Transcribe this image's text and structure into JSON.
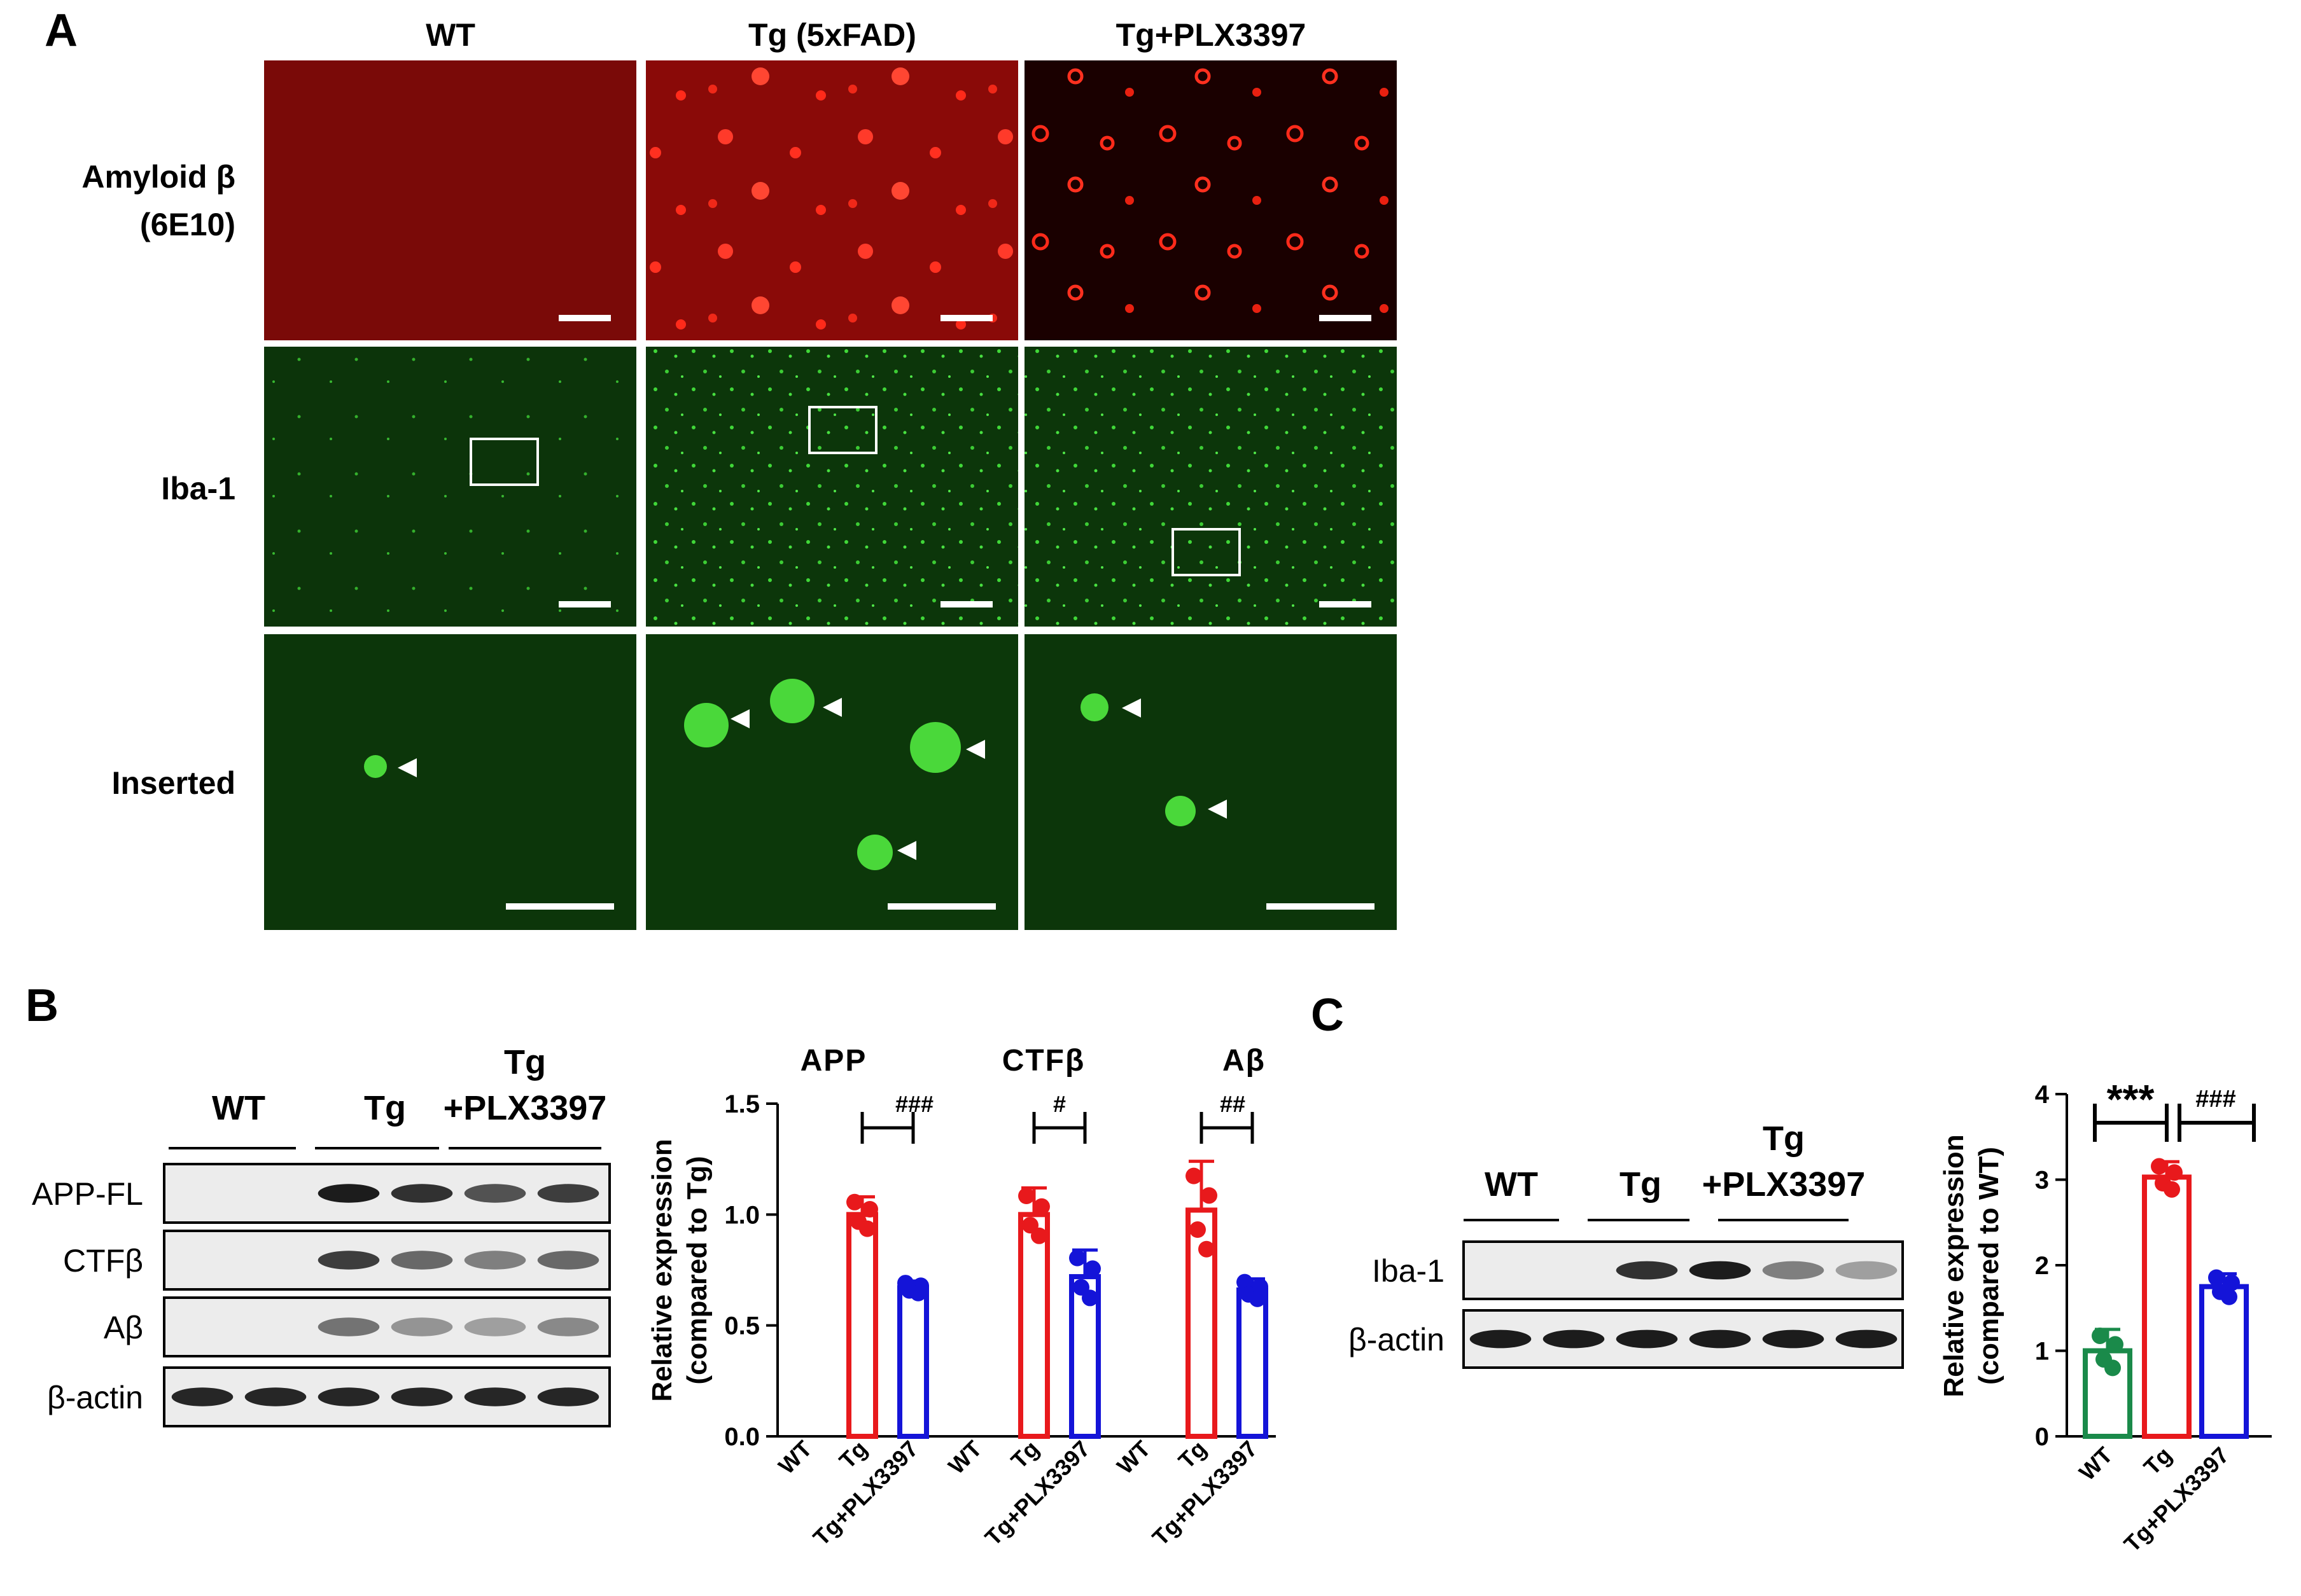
{
  "panels": {
    "a": "A",
    "b": "B",
    "c": "C"
  },
  "panel_a": {
    "columns": [
      "WT",
      "Tg (5xFAD)",
      "Tg+PLX3397"
    ],
    "rows": [
      {
        "label_lines": [
          "Amyloid β",
          "(6E10)"
        ],
        "stain": "red"
      },
      {
        "label_lines": [
          "Iba-1"
        ],
        "stain": "green"
      },
      {
        "label_lines": [
          "Inserted"
        ],
        "stain": "green"
      }
    ]
  },
  "blot_b": {
    "groups": [
      "WT",
      "Tg"
    ],
    "group3_lines": [
      "Tg",
      "+PLX3397"
    ],
    "rows": [
      "APP-FL",
      "CTFβ",
      "Aβ",
      "β-actin"
    ]
  },
  "blot_c": {
    "groups": [
      "WT",
      "Tg"
    ],
    "group3_lines": [
      "Tg",
      "+PLX3397"
    ],
    "rows": [
      "Iba-1",
      "β-actin"
    ]
  },
  "colors": {
    "wt": "#1a8a4a",
    "tg": "#e8191c",
    "plx": "#1414d8"
  },
  "chart_data": [
    {
      "type": "bar",
      "ylabel": "Relative expression (compared to Tg)",
      "ylim": [
        0,
        1.5
      ],
      "yticks": [
        "0.0",
        "0.5",
        "1.0",
        "1.5"
      ],
      "groups": [
        {
          "title": "APP",
          "sig": "###",
          "categories": [
            "WT",
            "Tg",
            "Tg+PLX3397"
          ],
          "values": [
            null,
            1.0,
            0.67
          ],
          "errors": [
            0,
            0.08,
            0.03
          ]
        },
        {
          "title": "CTFβ",
          "sig": "#",
          "categories": [
            "WT",
            "Tg",
            "Tg+PLX3397"
          ],
          "values": [
            null,
            1.0,
            0.72
          ],
          "errors": [
            0,
            0.12,
            0.12
          ]
        },
        {
          "title": "Aβ",
          "sig": "##",
          "categories": [
            "WT",
            "Tg",
            "Tg+PLX3397"
          ],
          "values": [
            null,
            1.02,
            0.66
          ],
          "errors": [
            0,
            0.22,
            0.05
          ]
        }
      ]
    },
    {
      "type": "bar",
      "ylabel": "Relative expression (compared to WT)",
      "ylim": [
        0,
        4
      ],
      "yticks": [
        "0",
        "1",
        "2",
        "3",
        "4"
      ],
      "categories": [
        "WT",
        "Tg",
        "Tg+PLX3397"
      ],
      "values": [
        1.0,
        3.03,
        1.75
      ],
      "errors": [
        0.25,
        0.18,
        0.15
      ],
      "sig": [
        "***",
        "###"
      ]
    }
  ]
}
